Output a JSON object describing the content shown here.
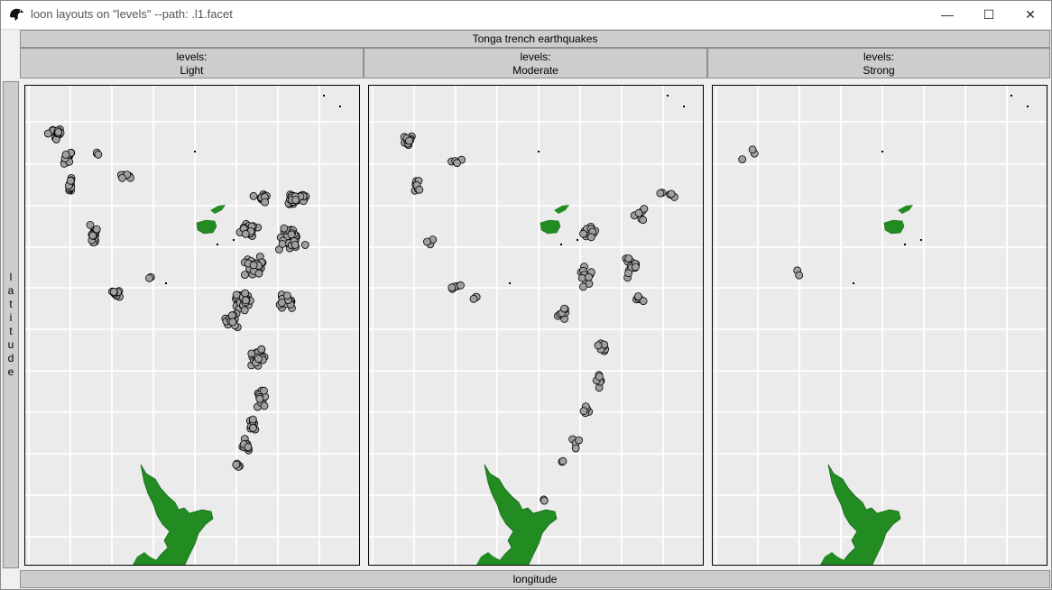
{
  "window": {
    "title": "loon layouts on \"levels\" --path: .l1.facet",
    "minimize": "—",
    "maximize": "☐",
    "close": "✕"
  },
  "plot": {
    "title": "Tonga trench earthquakes",
    "xlabel": "longitude",
    "ylabel": "latitude",
    "facet_prefix": "levels:",
    "facets": [
      "Light",
      "Moderate",
      "Strong"
    ]
  },
  "colors": {
    "panel_bg": "#ebebeb",
    "grid": "#ffffff",
    "point_fill": "#a0a0a0",
    "land": "#228b22",
    "strip": "#cdcdcd"
  },
  "icons": {
    "app": "loon-bird-icon",
    "minimize": "minimize-icon",
    "maximize": "maximize-icon",
    "close": "close-icon"
  }
}
